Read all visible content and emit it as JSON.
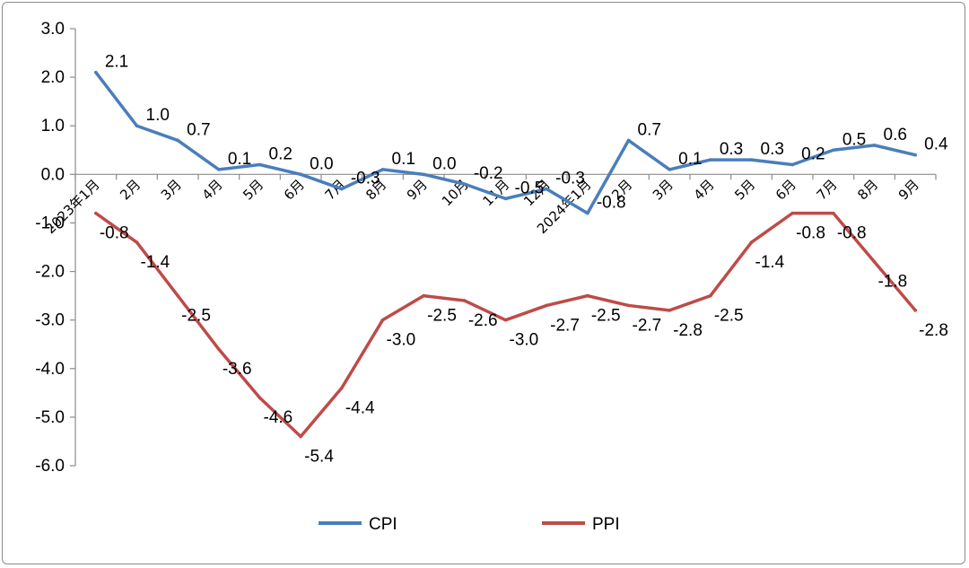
{
  "chart_data": {
    "type": "line",
    "title": "",
    "xlabel": "",
    "ylabel": "",
    "ylim": [
      -6.0,
      3.0
    ],
    "y_ticks": [
      "3.0",
      "2.0",
      "1.0",
      "0.0",
      "-1.0",
      "-2.0",
      "-3.0",
      "-4.0",
      "-5.0",
      "-6.0"
    ],
    "categories": [
      "2023年1月",
      "2月",
      "3月",
      "4月",
      "5月",
      "6月",
      "7月",
      "8月",
      "9月",
      "10月",
      "11月",
      "12月",
      "2024年1月",
      "2月",
      "3月",
      "4月",
      "5月",
      "6月",
      "7月",
      "8月",
      "9月"
    ],
    "legend_position": "bottom",
    "grid": false,
    "series": [
      {
        "name": "CPI",
        "color": "#4a7ebb",
        "values": [
          2.1,
          1.0,
          0.7,
          0.1,
          0.2,
          0.0,
          -0.3,
          0.1,
          0.0,
          -0.2,
          -0.5,
          -0.3,
          -0.8,
          0.7,
          0.1,
          0.3,
          0.3,
          0.2,
          0.5,
          0.6,
          0.4
        ],
        "labels": [
          "2.1",
          "1.0",
          "0.7",
          "0.1",
          "0.2",
          "0.0",
          "-0.3",
          "0.1",
          "0.0",
          "-0.2",
          "-0.5",
          "-0.3",
          "-0.8",
          "0.7",
          "0.1",
          "0.3",
          "0.3",
          "0.2",
          "0.5",
          "0.6",
          "0.4"
        ]
      },
      {
        "name": "PPI",
        "color": "#be4b48",
        "values": [
          -0.8,
          -1.4,
          -2.5,
          -3.6,
          -4.6,
          -5.4,
          -4.4,
          -3.0,
          -2.5,
          -2.6,
          -3.0,
          -2.7,
          -2.5,
          -2.7,
          -2.8,
          -2.5,
          -1.4,
          -0.8,
          -0.8,
          -1.8,
          -2.8
        ],
        "labels": [
          "-0.8",
          "-1.4",
          "-2.5",
          "-3.6",
          "-4.6",
          "-5.4",
          "-4.4",
          "-3.0",
          "-2.5",
          "-2.6",
          "-3.0",
          "-2.7",
          "-2.5",
          "-2.7",
          "-2.8",
          "-2.5",
          "-1.4",
          "-0.8",
          "-0.8",
          "-1.8",
          "-2.8"
        ]
      }
    ]
  }
}
